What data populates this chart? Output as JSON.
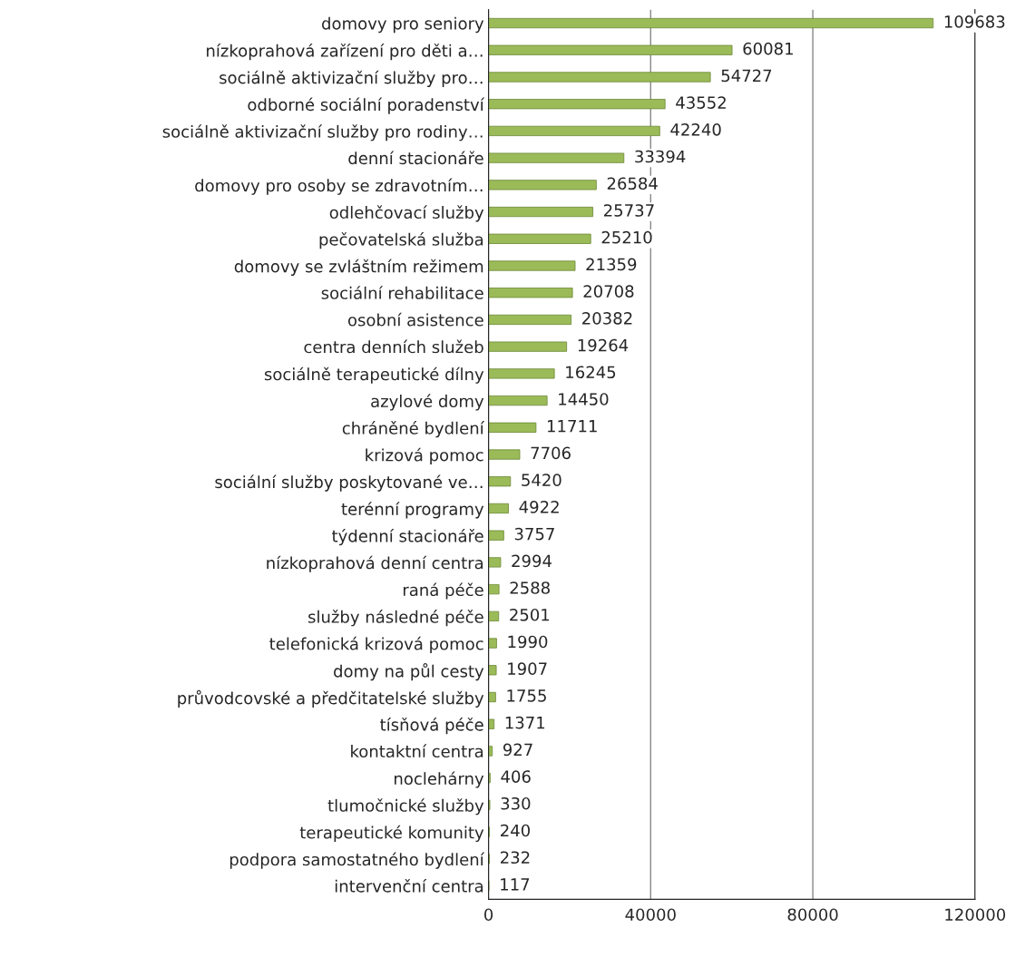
{
  "chart_data": {
    "type": "bar",
    "orientation": "horizontal",
    "color": "#9bbb59",
    "data_labels": true,
    "grid": "x",
    "xlim": [
      0,
      120000
    ],
    "xticks": [
      0,
      40000,
      80000,
      120000
    ],
    "categories": [
      "domovy pro seniory",
      "nízkoprahová zařízení pro děti a…",
      "sociálně aktivizační služby pro…",
      "odborné sociální poradenství",
      "sociálně aktivizační služby pro rodiny…",
      "denní stacionáře",
      "domovy pro osoby se zdravotním…",
      "odlehčovací služby",
      "pečovatelská služba",
      "domovy se zvláštním režimem",
      "sociální rehabilitace",
      "osobní asistence",
      "centra denních služeb",
      "sociálně terapeutické dílny",
      "azylové domy",
      "chráněné bydlení",
      "krizová pomoc",
      "sociální služby poskytované ve…",
      "terénní programy",
      "týdenní stacionáře",
      "nízkoprahová denní centra",
      "raná péče",
      "služby následné péče",
      "telefonická krizová pomoc",
      "domy na půl cesty",
      "průvodcovské a předčitatelské služby",
      "tísňová péče",
      "kontaktní centra",
      "noclehárny",
      "tlumočnické služby",
      "terapeutické komunity",
      "podpora samostatného bydlení",
      "intervenční centra"
    ],
    "values": [
      109683,
      60081,
      54727,
      43552,
      42240,
      33394,
      26584,
      25737,
      25210,
      21359,
      20708,
      20382,
      19264,
      16245,
      14450,
      11711,
      7706,
      5420,
      4922,
      3757,
      2994,
      2588,
      2501,
      1990,
      1907,
      1755,
      1371,
      927,
      406,
      330,
      240,
      232,
      117
    ]
  }
}
